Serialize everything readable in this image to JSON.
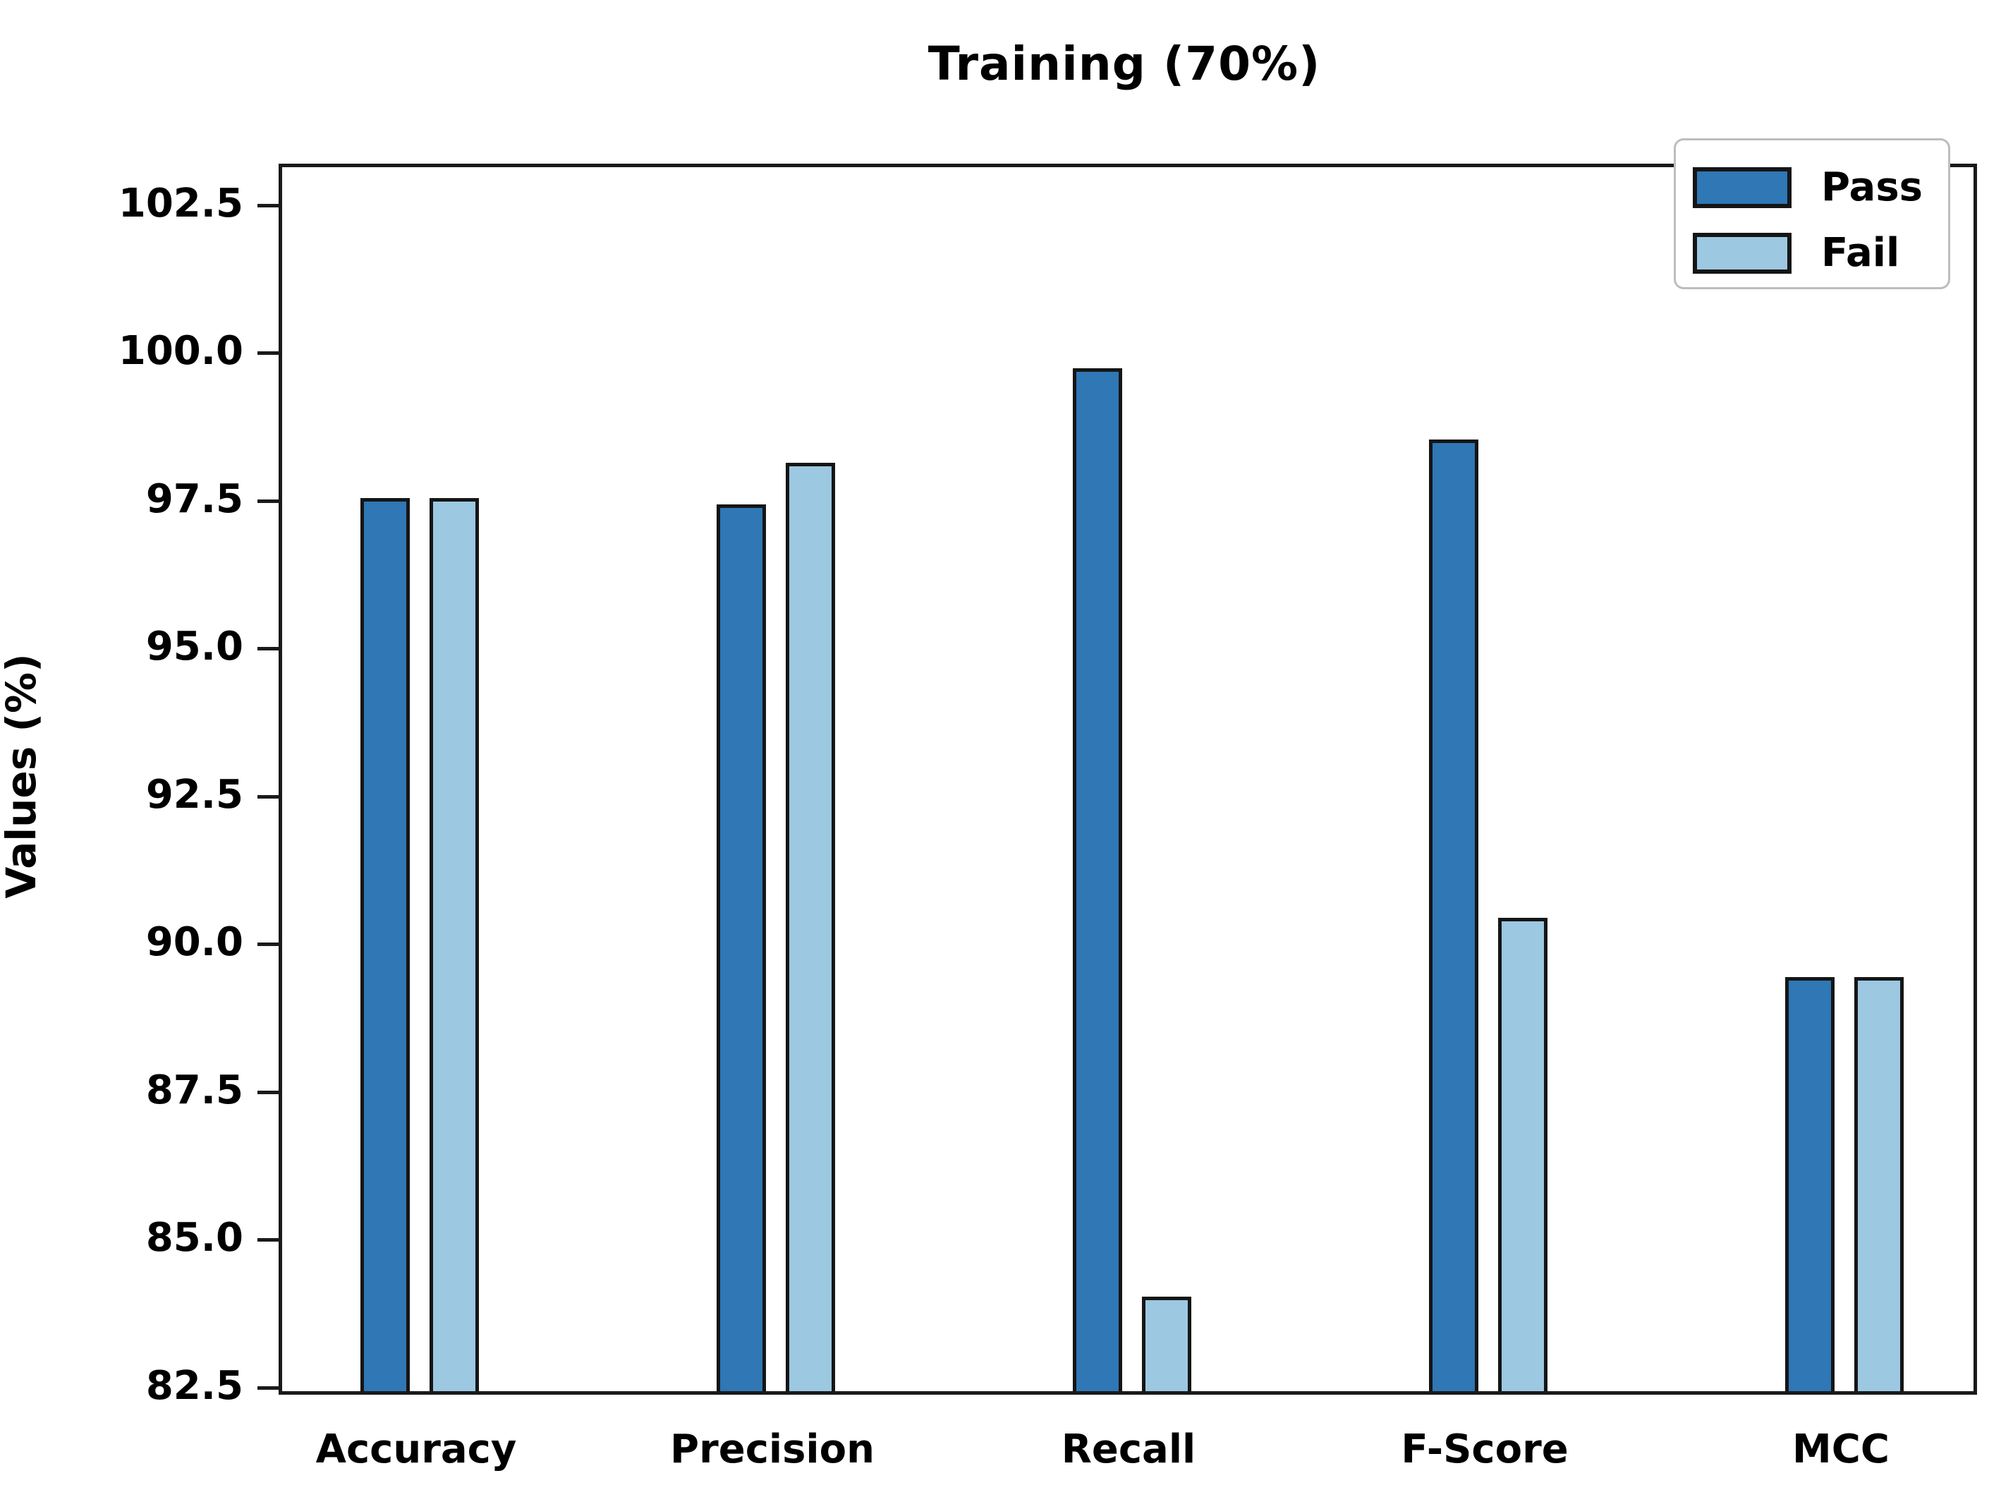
{
  "chart_data": {
    "type": "bar",
    "title": "Training (70%)",
    "xlabel": "",
    "ylabel": "Values (%)",
    "categories": [
      "Accuracy",
      "Precision",
      "Recall",
      "F-Score",
      "MCC"
    ],
    "series": [
      {
        "name": "Pass",
        "color": "#2f77b5",
        "values": [
          97.6,
          97.5,
          99.8,
          98.6,
          89.5
        ]
      },
      {
        "name": "Fail",
        "color": "#9cc8e2",
        "values": [
          97.6,
          98.2,
          84.1,
          90.5,
          89.5
        ]
      }
    ],
    "ylim": [
      82.5,
      103.2
    ],
    "yticks": [
      {
        "value": 102.5,
        "label": "102.5"
      },
      {
        "value": 100.0,
        "label": "100.0"
      },
      {
        "value": 97.5,
        "label": "97.5"
      },
      {
        "value": 95.0,
        "label": "95.0"
      },
      {
        "value": 92.5,
        "label": "92.5"
      },
      {
        "value": 90.0,
        "label": "90.0"
      },
      {
        "value": 87.5,
        "label": "87.5"
      },
      {
        "value": 85.0,
        "label": "85.0"
      },
      {
        "value": 82.5,
        "label": "82.5"
      }
    ],
    "grid": false,
    "bar_edge_color": "#151515",
    "legend": {
      "position": "upper-right",
      "labels": [
        "Pass",
        "Fail"
      ]
    }
  }
}
